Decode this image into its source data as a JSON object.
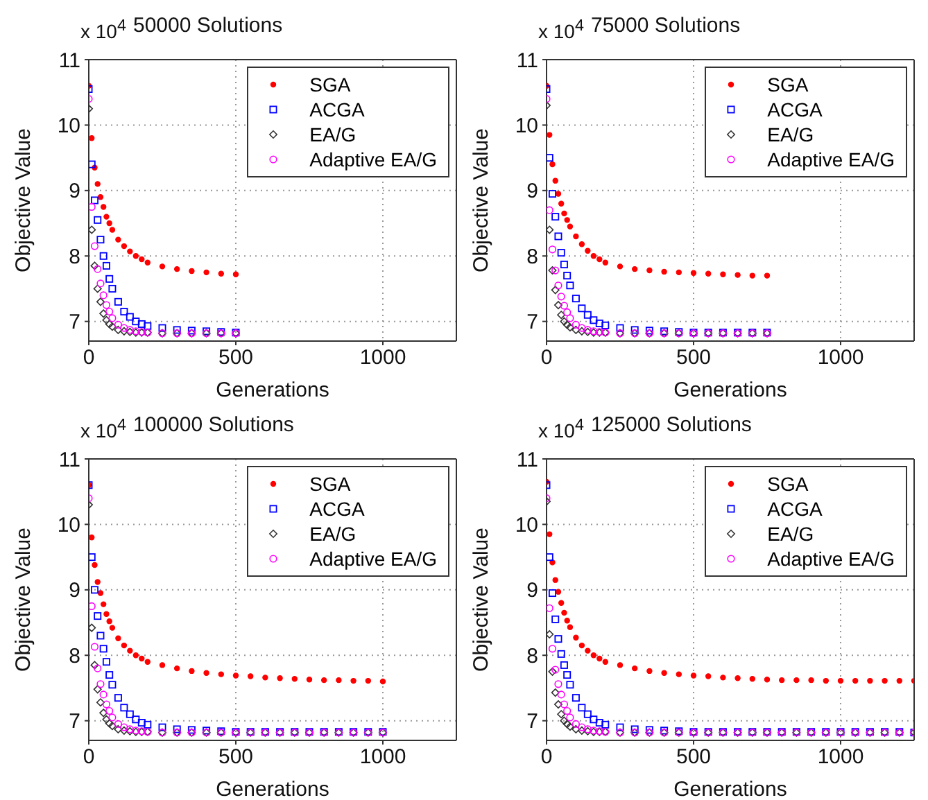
{
  "chart_data": [
    {
      "type": "scatter",
      "title": "50000 Solutions",
      "xlabel": "Generations",
      "ylabel": "Objective Value",
      "annotations": [
        "x 10$^{4}$"
      ],
      "xlim": [
        0,
        1250
      ],
      "xticks": [
        0,
        500,
        1000
      ],
      "ylim": [
        6.7,
        11
      ],
      "yticks": [
        7,
        8,
        9,
        10,
        11
      ],
      "grid": true,
      "legend": "top right",
      "x": [
        0,
        10,
        20,
        30,
        40,
        50,
        60,
        70,
        80,
        100,
        120,
        140,
        160,
        180,
        200,
        250,
        300,
        350,
        400,
        450,
        500
      ],
      "series": [
        {
          "name": "SGA",
          "color": "#ff0000",
          "marker": "circle",
          "values": [
            10.6,
            9.8,
            9.35,
            9.1,
            8.9,
            8.75,
            8.6,
            8.5,
            8.4,
            8.25,
            8.15,
            8.07,
            8.0,
            7.95,
            7.9,
            7.84,
            7.8,
            7.77,
            7.75,
            7.73,
            7.72
          ]
        },
        {
          "name": "ACGA",
          "color": "#0000ff",
          "marker": "square",
          "values": [
            10.55,
            9.4,
            8.85,
            8.55,
            8.25,
            8.0,
            7.85,
            7.65,
            7.5,
            7.3,
            7.15,
            7.07,
            7.0,
            6.96,
            6.93,
            6.9,
            6.87,
            6.86,
            6.85,
            6.84,
            6.83
          ]
        },
        {
          "name": "EA/G",
          "color": "#333333",
          "marker": "diamond",
          "values": [
            10.25,
            8.4,
            7.85,
            7.5,
            7.3,
            7.12,
            7.02,
            6.96,
            6.92,
            6.87,
            6.85,
            6.84,
            6.83,
            6.83,
            6.83,
            6.82,
            6.82,
            6.82,
            6.82,
            6.82,
            6.82
          ]
        },
        {
          "name": "Adaptive EA/G",
          "color": "#ff00ff",
          "marker": "circle_open",
          "values": [
            10.4,
            8.75,
            8.15,
            7.8,
            7.58,
            7.4,
            7.25,
            7.15,
            7.05,
            6.95,
            6.9,
            6.87,
            6.85,
            6.84,
            6.83,
            6.82,
            6.82,
            6.82,
            6.82,
            6.82,
            6.82
          ]
        }
      ]
    },
    {
      "type": "scatter",
      "title": "75000 Solutions",
      "xlabel": "Generations",
      "ylabel": "Objective Value",
      "annotations": [
        "x 10$^{4}$"
      ],
      "xlim": [
        0,
        1250
      ],
      "xticks": [
        0,
        500,
        1000
      ],
      "ylim": [
        6.7,
        11
      ],
      "yticks": [
        7,
        8,
        9,
        10,
        11
      ],
      "grid": true,
      "legend": "top right",
      "x": [
        0,
        10,
        20,
        30,
        40,
        50,
        60,
        70,
        80,
        100,
        120,
        140,
        160,
        180,
        200,
        250,
        300,
        350,
        400,
        450,
        500,
        550,
        600,
        650,
        700,
        750
      ],
      "series": [
        {
          "name": "SGA",
          "color": "#ff0000",
          "marker": "circle",
          "values": [
            10.6,
            9.85,
            9.4,
            9.15,
            8.95,
            8.8,
            8.65,
            8.55,
            8.45,
            8.3,
            8.18,
            8.08,
            8.0,
            7.95,
            7.9,
            7.84,
            7.8,
            7.78,
            7.76,
            7.75,
            7.74,
            7.73,
            7.72,
            7.71,
            7.7,
            7.7
          ]
        },
        {
          "name": "ACGA",
          "color": "#0000ff",
          "marker": "square",
          "values": [
            10.55,
            9.5,
            8.95,
            8.6,
            8.3,
            8.05,
            7.87,
            7.7,
            7.55,
            7.35,
            7.2,
            7.1,
            7.02,
            6.97,
            6.94,
            6.9,
            6.87,
            6.86,
            6.85,
            6.84,
            6.83,
            6.83,
            6.83,
            6.83,
            6.83,
            6.83
          ]
        },
        {
          "name": "EA/G",
          "color": "#333333",
          "marker": "diamond",
          "values": [
            10.3,
            8.4,
            7.78,
            7.48,
            7.25,
            7.1,
            7.0,
            6.95,
            6.91,
            6.87,
            6.85,
            6.84,
            6.83,
            6.83,
            6.83,
            6.82,
            6.82,
            6.82,
            6.82,
            6.82,
            6.82,
            6.82,
            6.82,
            6.82,
            6.82,
            6.82
          ]
        },
        {
          "name": "Adaptive EA/G",
          "color": "#ff00ff",
          "marker": "circle_open",
          "values": [
            10.4,
            8.7,
            8.1,
            7.78,
            7.55,
            7.38,
            7.24,
            7.14,
            7.05,
            6.95,
            6.9,
            6.87,
            6.85,
            6.84,
            6.83,
            6.82,
            6.82,
            6.82,
            6.82,
            6.82,
            6.82,
            6.82,
            6.82,
            6.82,
            6.82,
            6.82
          ]
        }
      ]
    },
    {
      "type": "scatter",
      "title": "100000 Solutions",
      "xlabel": "Generations",
      "ylabel": "Objective Value",
      "annotations": [
        "x 10$^{4}$"
      ],
      "xlim": [
        0,
        1250
      ],
      "xticks": [
        0,
        500,
        1000
      ],
      "ylim": [
        6.7,
        11
      ],
      "yticks": [
        7,
        8,
        9,
        10,
        11
      ],
      "grid": true,
      "legend": "top right",
      "x": [
        0,
        10,
        20,
        30,
        40,
        50,
        60,
        70,
        80,
        100,
        120,
        140,
        160,
        180,
        200,
        250,
        300,
        350,
        400,
        450,
        500,
        550,
        600,
        650,
        700,
        750,
        800,
        850,
        900,
        950,
        1000
      ],
      "series": [
        {
          "name": "SGA",
          "color": "#ff0000",
          "marker": "circle",
          "values": [
            10.6,
            9.8,
            9.38,
            9.12,
            8.95,
            8.78,
            8.63,
            8.52,
            8.42,
            8.26,
            8.15,
            8.07,
            8.0,
            7.95,
            7.9,
            7.85,
            7.8,
            7.76,
            7.73,
            7.71,
            7.69,
            7.68,
            7.66,
            7.65,
            7.64,
            7.63,
            7.62,
            7.62,
            7.61,
            7.61,
            7.6
          ]
        },
        {
          "name": "ACGA",
          "color": "#0000ff",
          "marker": "square",
          "values": [
            10.6,
            9.5,
            9.0,
            8.6,
            8.3,
            8.1,
            7.9,
            7.7,
            7.55,
            7.35,
            7.2,
            7.1,
            7.02,
            6.97,
            6.94,
            6.9,
            6.87,
            6.86,
            6.85,
            6.84,
            6.83,
            6.83,
            6.83,
            6.83,
            6.83,
            6.83,
            6.83,
            6.83,
            6.83,
            6.83,
            6.83
          ]
        },
        {
          "name": "EA/G",
          "color": "#333333",
          "marker": "diamond",
          "values": [
            10.3,
            8.42,
            7.85,
            7.48,
            7.28,
            7.12,
            7.02,
            6.96,
            6.92,
            6.87,
            6.85,
            6.84,
            6.83,
            6.83,
            6.83,
            6.82,
            6.82,
            6.82,
            6.82,
            6.82,
            6.82,
            6.82,
            6.82,
            6.82,
            6.82,
            6.82,
            6.82,
            6.82,
            6.82,
            6.82,
            6.82
          ]
        },
        {
          "name": "Adaptive EA/G",
          "color": "#ff00ff",
          "marker": "circle_open",
          "values": [
            10.4,
            8.75,
            8.13,
            7.8,
            7.56,
            7.4,
            7.25,
            7.15,
            7.05,
            6.95,
            6.9,
            6.87,
            6.85,
            6.84,
            6.83,
            6.82,
            6.82,
            6.82,
            6.82,
            6.82,
            6.82,
            6.82,
            6.82,
            6.82,
            6.82,
            6.82,
            6.82,
            6.82,
            6.82,
            6.82,
            6.82
          ]
        }
      ]
    },
    {
      "type": "scatter",
      "title": "125000 Solutions",
      "xlabel": "Generations",
      "ylabel": "Objective Value",
      "annotations": [
        "x 10$^{4}$"
      ],
      "xlim": [
        0,
        1250
      ],
      "xticks": [
        0,
        500,
        1000
      ],
      "ylim": [
        6.7,
        11
      ],
      "yticks": [
        7,
        8,
        9,
        10,
        11
      ],
      "grid": true,
      "legend": "top right",
      "x": [
        0,
        10,
        20,
        30,
        40,
        50,
        60,
        70,
        80,
        100,
        120,
        140,
        160,
        180,
        200,
        250,
        300,
        350,
        400,
        450,
        500,
        550,
        600,
        650,
        700,
        750,
        800,
        850,
        900,
        950,
        1000,
        1050,
        1100,
        1150,
        1200,
        1250
      ],
      "series": [
        {
          "name": "SGA",
          "color": "#ff0000",
          "marker": "circle",
          "values": [
            10.65,
            9.85,
            9.42,
            9.15,
            8.97,
            8.8,
            8.65,
            8.53,
            8.43,
            8.27,
            8.15,
            8.07,
            8.0,
            7.95,
            7.9,
            7.85,
            7.8,
            7.76,
            7.73,
            7.71,
            7.69,
            7.68,
            7.66,
            7.65,
            7.64,
            7.63,
            7.62,
            7.62,
            7.62,
            7.61,
            7.61,
            7.61,
            7.61,
            7.61,
            7.61,
            7.61
          ]
        },
        {
          "name": "ACGA",
          "color": "#0000ff",
          "marker": "square",
          "values": [
            10.6,
            9.5,
            8.95,
            8.55,
            8.25,
            8.02,
            7.85,
            7.7,
            7.55,
            7.35,
            7.2,
            7.1,
            7.02,
            6.97,
            6.94,
            6.9,
            6.87,
            6.86,
            6.85,
            6.84,
            6.83,
            6.83,
            6.83,
            6.83,
            6.83,
            6.83,
            6.83,
            6.83,
            6.83,
            6.83,
            6.83,
            6.83,
            6.83,
            6.83,
            6.83,
            6.82
          ]
        },
        {
          "name": "EA/G",
          "color": "#333333",
          "marker": "diamond",
          "values": [
            10.35,
            8.32,
            7.75,
            7.43,
            7.25,
            7.1,
            7.0,
            6.95,
            6.91,
            6.87,
            6.85,
            6.84,
            6.83,
            6.83,
            6.83,
            6.82,
            6.82,
            6.82,
            6.82,
            6.82,
            6.82,
            6.82,
            6.82,
            6.82,
            6.82,
            6.82,
            6.82,
            6.82,
            6.82,
            6.82,
            6.82,
            6.82,
            6.82,
            6.82,
            6.82,
            6.82
          ]
        },
        {
          "name": "Adaptive EA/G",
          "color": "#ff00ff",
          "marker": "circle_open",
          "values": [
            10.4,
            8.72,
            8.1,
            7.78,
            7.56,
            7.4,
            7.25,
            7.15,
            7.05,
            6.95,
            6.9,
            6.87,
            6.85,
            6.84,
            6.83,
            6.82,
            6.82,
            6.82,
            6.82,
            6.82,
            6.82,
            6.82,
            6.82,
            6.82,
            6.82,
            6.82,
            6.82,
            6.82,
            6.82,
            6.82,
            6.82,
            6.82,
            6.82,
            6.82,
            6.82,
            6.82
          ]
        }
      ]
    }
  ]
}
